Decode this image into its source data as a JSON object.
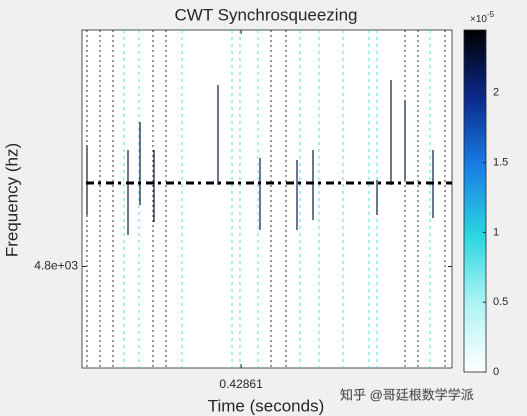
{
  "chart_data": {
    "type": "heatmap",
    "title": "CWT Synchrosqueezing",
    "xlabel": "Time (seconds)",
    "ylabel": "Frequency (hz)",
    "xlim": [
      0.42818,
      0.42918
    ],
    "xticks": [
      0.42861
    ],
    "ylim": [
      4700,
      5033
    ],
    "yticks": [
      {
        "value": 4800,
        "label": "4.8e+03"
      }
    ],
    "colorbar": {
      "clim": [
        0,
        2.45
      ],
      "ticks": [
        0,
        0.5,
        1,
        1.5,
        2
      ],
      "exponent": {
        "base": "×10",
        "power": "-5"
      },
      "colormap": [
        "#ffffff",
        "#aef4f4",
        "#29d6e0",
        "#1a7fe6",
        "#0b2a8c",
        "#000000"
      ]
    },
    "watermark": "知乎 @哥廷根数学学派"
  }
}
